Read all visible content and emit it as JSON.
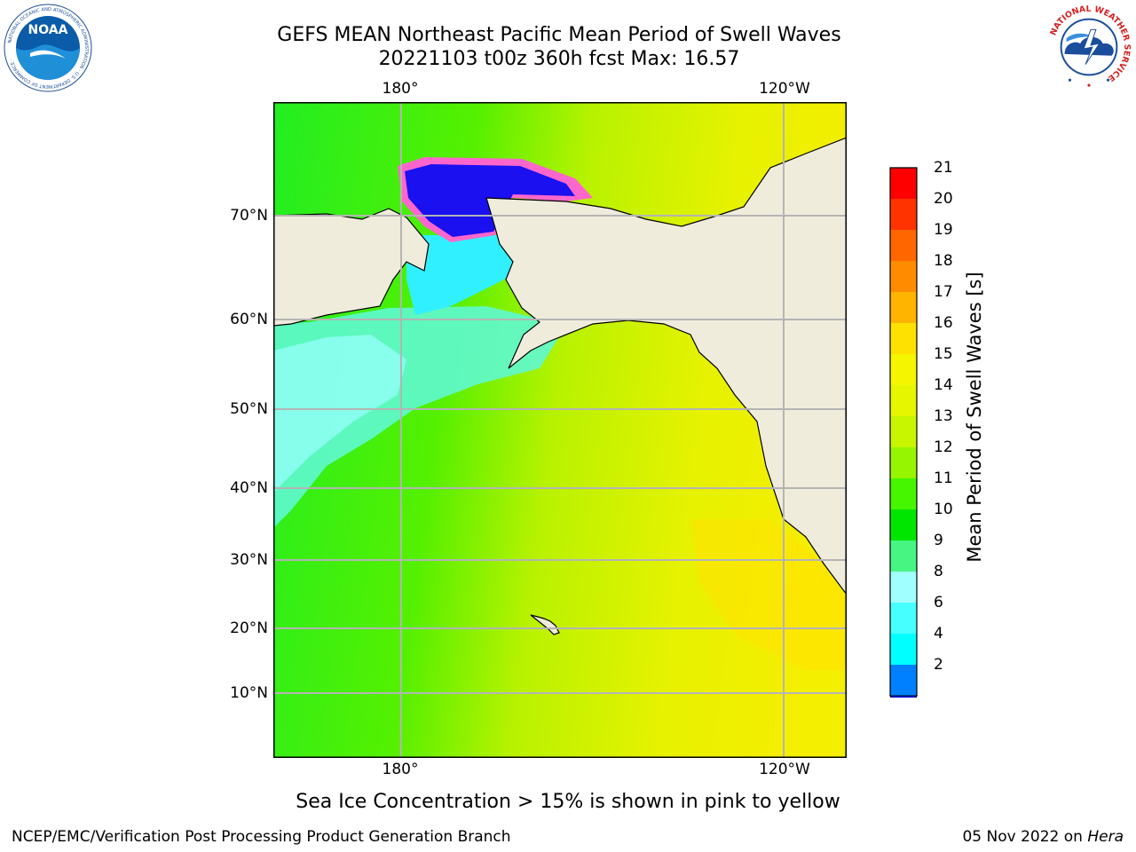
{
  "title": {
    "line1": "GEFS MEAN Northeast Pacific Mean Period of Swell Waves",
    "line2": "20221103 t00z 360h fcst   Max: 16.57"
  },
  "logos": {
    "left": {
      "text": "NOAA",
      "ring": "NATIONAL OCEANIC AND ATMOSPHERIC ADMINISTRATION · U.S. DEPARTMENT OF COMMERCE ·",
      "icon": "noaa-logo"
    },
    "right": {
      "ring": "NATIONAL WEATHER SERVICE",
      "icon": "nws-logo"
    }
  },
  "map": {
    "top_ticks": [
      "180°",
      "120°W"
    ],
    "bottom_ticks": [
      "180°",
      "120°W"
    ],
    "left_ticks": [
      "70°N",
      "60°N",
      "50°N",
      "40°N",
      "30°N",
      "20°N",
      "10°N"
    ],
    "colors": {
      "land": "#efecdc",
      "grid": "#b4b4b4",
      "coast": "#000000"
    }
  },
  "colorbar": {
    "label": "Mean Period of Swell Waves [s]",
    "ticks": [
      "21",
      "20",
      "19",
      "18",
      "17",
      "16",
      "15",
      "14",
      "13",
      "12",
      "11",
      "10",
      "9",
      "8",
      "6",
      "4",
      "2"
    ],
    "colors_top_to_bottom": [
      "#ff0000",
      "#ff3300",
      "#ff6600",
      "#ff8c00",
      "#ffb400",
      "#ffe100",
      "#f5f500",
      "#e6f500",
      "#c8f500",
      "#96f500",
      "#46f500",
      "#00e600",
      "#46f582",
      "#a0ffff",
      "#46ffff",
      "#00ffff",
      "#0080ff"
    ],
    "extend_color": "#0000ff"
  },
  "ice_note": "Sea Ice Concentration > 15% is shown in pink to yellow",
  "footer": {
    "left": "NCEP/EMC/Verification Post Processing Product Generation Branch",
    "right_date": "05 Nov 2022 on",
    "right_machine": "Hera"
  }
}
